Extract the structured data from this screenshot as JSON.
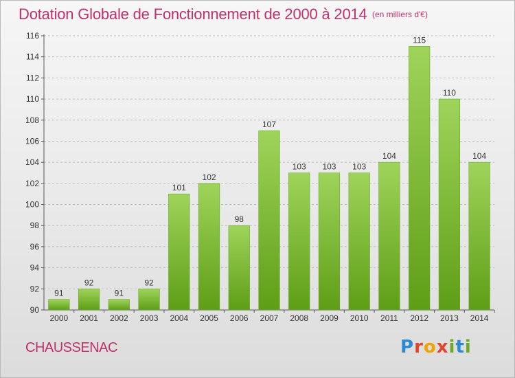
{
  "header": {
    "title": "Dotation Globale de Fonctionnement de 2000 à 2014",
    "subtitle": "(en milliers d'€)"
  },
  "footer": {
    "town": "CHAUSSENAC",
    "logo": "Proxiti"
  },
  "colors": {
    "title": "#c0306a",
    "bar_top": "#9fd45a",
    "bar_bottom": "#5e9e16",
    "grid": "#bdbdbd"
  },
  "chart_data": {
    "type": "bar",
    "categories": [
      "2000",
      "2001",
      "2002",
      "2003",
      "2004",
      "2005",
      "2006",
      "2007",
      "2008",
      "2009",
      "2010",
      "2011",
      "2012",
      "2013",
      "2014"
    ],
    "values": [
      91,
      92,
      91,
      92,
      101,
      102,
      98,
      107,
      103,
      103,
      103,
      104,
      115,
      110,
      104
    ],
    "ylim": [
      90,
      116
    ],
    "yticks": [
      90,
      92,
      94,
      96,
      98,
      100,
      102,
      104,
      106,
      108,
      110,
      112,
      114,
      116
    ],
    "grid": "horizontal dashed",
    "legend": "none"
  }
}
